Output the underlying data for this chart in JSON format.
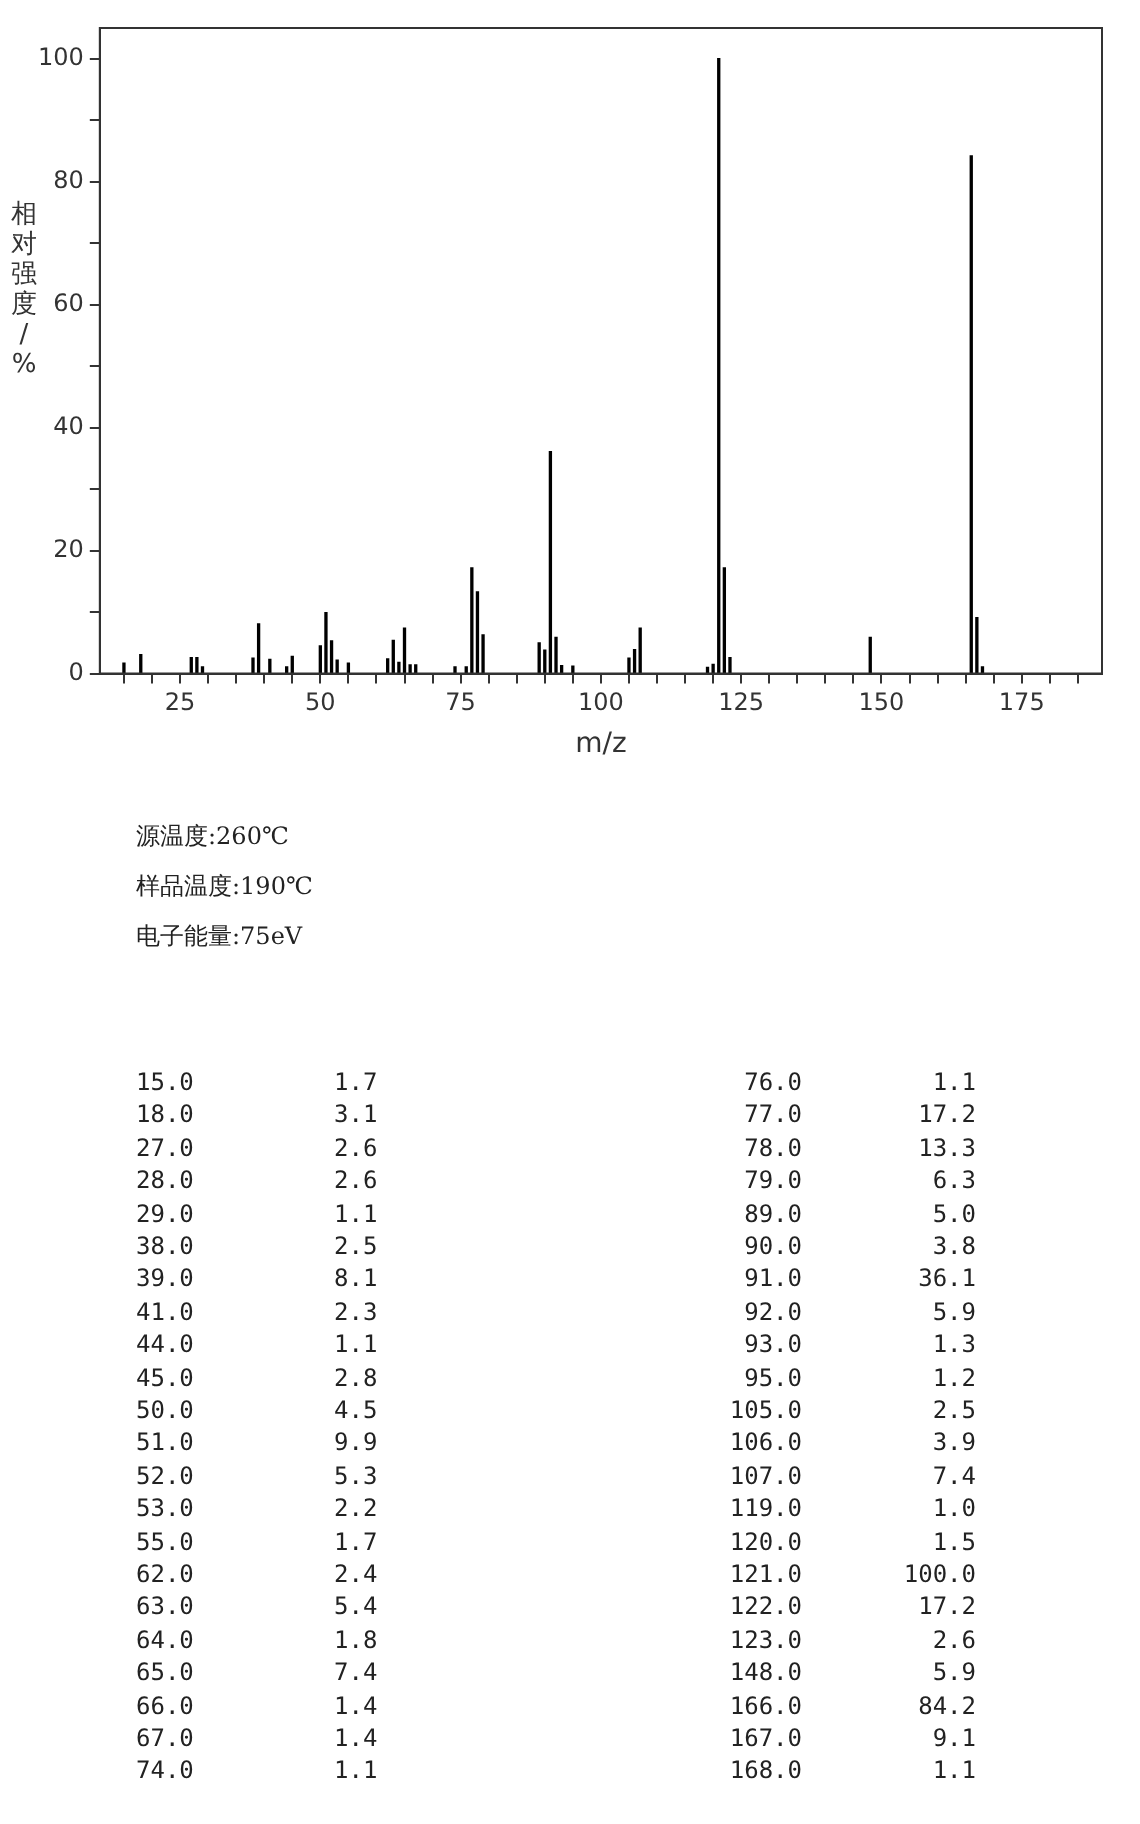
{
  "chart_data": {
    "type": "bar",
    "xlabel": "m/z",
    "ylabel": "相对强度/%",
    "x": [
      15,
      18,
      27,
      28,
      29,
      38,
      39,
      41,
      44,
      45,
      50,
      51,
      52,
      53,
      55,
      62,
      63,
      64,
      65,
      66,
      67,
      74,
      76,
      77,
      78,
      79,
      89,
      90,
      91,
      92,
      93,
      95,
      105,
      106,
      107,
      119,
      120,
      121,
      122,
      123,
      148,
      166,
      167,
      168
    ],
    "values": [
      1.7,
      3.1,
      2.6,
      2.6,
      1.1,
      2.5,
      8.1,
      2.3,
      1.1,
      2.8,
      4.5,
      9.9,
      5.3,
      2.2,
      1.7,
      2.4,
      5.4,
      1.8,
      7.4,
      1.4,
      1.4,
      1.1,
      1.1,
      17.2,
      13.3,
      6.3,
      5.0,
      3.8,
      36.1,
      5.9,
      1.3,
      1.2,
      2.5,
      3.9,
      7.4,
      1.0,
      1.5,
      100,
      17.2,
      2.6,
      5.9,
      84.2,
      9.1,
      1.1
    ],
    "color": "#000000",
    "xlim": [
      10.7,
      189.3
    ],
    "xticks": [
      {
        "value": 15,
        "label": null
      },
      {
        "value": 20,
        "label": null
      },
      25,
      {
        "value": 30,
        "label": null
      },
      {
        "value": 35,
        "label": null
      },
      {
        "value": 40,
        "label": null
      },
      {
        "value": 45,
        "label": null
      },
      50,
      {
        "value": 55,
        "label": null
      },
      {
        "value": 60,
        "label": null
      },
      {
        "value": 65,
        "label": null
      },
      {
        "value": 70,
        "label": null
      },
      75,
      {
        "value": 80,
        "label": null
      },
      {
        "value": 85,
        "label": null
      },
      {
        "value": 90,
        "label": null
      },
      {
        "value": 95,
        "label": null
      },
      100,
      {
        "value": 105,
        "label": null
      },
      {
        "value": 110,
        "label": null
      },
      {
        "value": 115,
        "label": null
      },
      {
        "value": 120,
        "label": null
      },
      125,
      {
        "value": 130,
        "label": null
      },
      {
        "value": 135,
        "label": null
      },
      {
        "value": 140,
        "label": null
      },
      {
        "value": 145,
        "label": null
      },
      150,
      {
        "value": 155,
        "label": null
      },
      {
        "value": 160,
        "label": null
      },
      {
        "value": 165,
        "label": null
      },
      {
        "value": 170,
        "label": null
      },
      175,
      {
        "value": 180,
        "label": null
      },
      {
        "value": 185,
        "label": null
      }
    ],
    "ylim": [
      0,
      105
    ],
    "yticks": [
      0,
      {
        "value": 10,
        "label": null
      },
      20,
      {
        "value": 30,
        "label": null
      },
      40,
      {
        "value": 50,
        "label": null
      },
      60,
      {
        "value": 70,
        "label": null
      },
      80,
      {
        "value": 90,
        "label": null
      },
      100
    ],
    "grid": false,
    "legend": false,
    "annotations": [
      "源温度:260℃",
      "样品温度:190℃",
      "电子能量:75eV",
      "15.0",
      "1.7",
      "18.0",
      "3.1",
      "27.0",
      "2.6",
      "28.0",
      "2.6",
      "29.0",
      "1.1",
      "38.0",
      "2.5",
      "39.0",
      "8.1",
      "41.0",
      "2.3",
      "44.0",
      "1.1",
      "45.0",
      "2.8",
      "50.0",
      "4.5",
      "51.0",
      "9.9",
      "52.0",
      "5.3",
      "53.0",
      "2.2",
      "55.0",
      "1.7",
      "62.0",
      "2.4",
      "63.0",
      "5.4",
      "64.0",
      "1.8",
      "65.0",
      "7.4",
      "66.0",
      "1.4",
      "67.0",
      "1.4",
      "74.0",
      "1.1",
      "76.0",
      "1.1",
      "77.0",
      "17.2",
      "78.0",
      "13.3",
      "79.0",
      "6.3",
      "89.0",
      "5.0",
      "90.0",
      "3.8",
      "91.0",
      "36.1",
      "92.0",
      "5.9",
      "93.0",
      "1.3",
      "95.0",
      "1.2",
      "105.0",
      "2.5",
      "106.0",
      "3.9",
      "107.0",
      "7.4",
      "119.0",
      "1.0",
      "120.0",
      "1.5",
      "121.0",
      "100.0",
      "122.0",
      "17.2",
      "123.0",
      "2.6",
      "148.0",
      "5.9",
      "166.0",
      "84.2",
      "167.0",
      "9.1",
      "168.0",
      "1.1"
    ]
  }
}
